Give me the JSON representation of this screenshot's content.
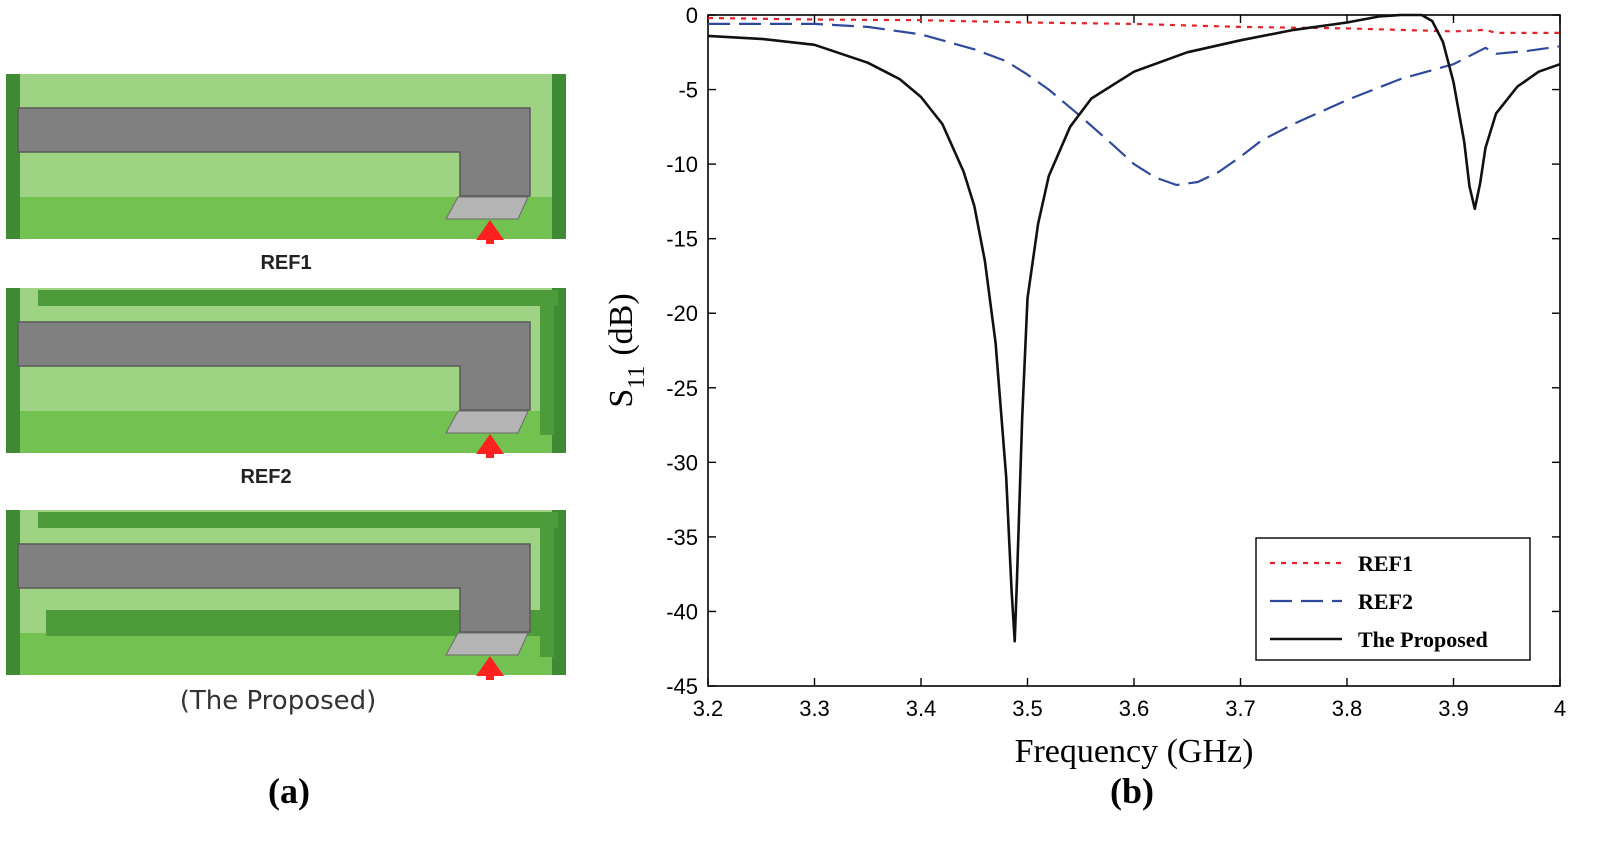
{
  "panel_a": {
    "caption": "(a)",
    "designs": [
      {
        "label": "REF1"
      },
      {
        "label": "REF2"
      },
      {
        "label": "(The Proposed)"
      }
    ],
    "colors": {
      "substrate_light": "#9ed384",
      "substrate_mid": "#73c151",
      "substrate_dark": "#4e9b3c",
      "border_dark": "#3f8a34",
      "radiator": "#808080",
      "feed_pad": "#b4b4b4",
      "feed_arrow": "#ff2020"
    }
  },
  "panel_b": {
    "caption": "(b)"
  },
  "chart_data": {
    "type": "line",
    "xlabel": "Frequency (GHz)",
    "ylabel": "S11 (dB)",
    "ylabel_main": "S",
    "ylabel_sub": "11",
    "ylabel_unit": "(dB)",
    "xlim": [
      3.2,
      4.0
    ],
    "ylim": [
      -45,
      0
    ],
    "x_ticks": [
      3.2,
      3.3,
      3.4,
      3.5,
      3.6,
      3.7,
      3.8,
      3.9,
      4.0
    ],
    "x_tick_labels": [
      "3.2",
      "3.3",
      "3.4",
      "3.5",
      "3.6",
      "3.7",
      "3.8",
      "3.9",
      "4"
    ],
    "y_ticks": [
      0,
      -5,
      -10,
      -15,
      -20,
      -25,
      -30,
      -35,
      -40,
      -45
    ],
    "y_tick_labels": [
      "0",
      "-5",
      "-10",
      "-15",
      "-20",
      "-25",
      "-30",
      "-35",
      "-40",
      "-45"
    ],
    "grid": false,
    "legend_position": "bottom-right",
    "series": [
      {
        "name": "REF1",
        "color": "#e8222a",
        "dash": "dotted",
        "x": [
          3.2,
          3.3,
          3.4,
          3.5,
          3.6,
          3.7,
          3.8,
          3.85,
          3.9,
          3.93,
          3.94,
          3.97,
          4.0
        ],
        "y": [
          -0.2,
          -0.3,
          -0.35,
          -0.5,
          -0.6,
          -0.8,
          -0.9,
          -1.0,
          -1.1,
          -1.0,
          -1.2,
          -1.2,
          -1.2
        ]
      },
      {
        "name": "REF2",
        "color": "#2e4a9e",
        "dash": "dashed",
        "x": [
          3.2,
          3.25,
          3.3,
          3.35,
          3.4,
          3.45,
          3.48,
          3.5,
          3.52,
          3.55,
          3.58,
          3.6,
          3.62,
          3.64,
          3.66,
          3.68,
          3.7,
          3.72,
          3.75,
          3.8,
          3.85,
          3.9,
          3.93,
          3.94,
          3.97,
          4.0
        ],
        "y": [
          -0.6,
          -0.6,
          -0.6,
          -0.8,
          -1.3,
          -2.3,
          -3.1,
          -4.0,
          -5.0,
          -6.8,
          -8.7,
          -10.0,
          -10.9,
          -11.4,
          -11.2,
          -10.5,
          -9.5,
          -8.4,
          -7.3,
          -5.7,
          -4.3,
          -3.3,
          -2.2,
          -2.6,
          -2.4,
          -2.1
        ]
      },
      {
        "name": "The Proposed",
        "color": "#111111",
        "dash": "solid",
        "x": [
          3.2,
          3.25,
          3.3,
          3.35,
          3.38,
          3.4,
          3.42,
          3.44,
          3.45,
          3.46,
          3.47,
          3.48,
          3.485,
          3.488,
          3.49,
          3.495,
          3.5,
          3.51,
          3.52,
          3.54,
          3.56,
          3.6,
          3.65,
          3.7,
          3.75,
          3.8,
          3.83,
          3.85,
          3.87,
          3.88,
          3.89,
          3.9,
          3.91,
          3.915,
          3.92,
          3.925,
          3.93,
          3.94,
          3.96,
          3.98,
          4.0
        ],
        "y": [
          -1.4,
          -1.6,
          -2.0,
          -3.2,
          -4.3,
          -5.5,
          -7.3,
          -10.5,
          -12.8,
          -16.5,
          -22.0,
          -31.0,
          -38.5,
          -42.0,
          -38.0,
          -27.0,
          -19.0,
          -14.0,
          -10.8,
          -7.5,
          -5.6,
          -3.8,
          -2.5,
          -1.7,
          -1.0,
          -0.5,
          -0.1,
          0.0,
          0.0,
          -0.4,
          -1.8,
          -4.5,
          -8.5,
          -11.5,
          -13.0,
          -11.3,
          -8.9,
          -6.6,
          -4.8,
          -3.8,
          -3.3
        ]
      }
    ]
  }
}
